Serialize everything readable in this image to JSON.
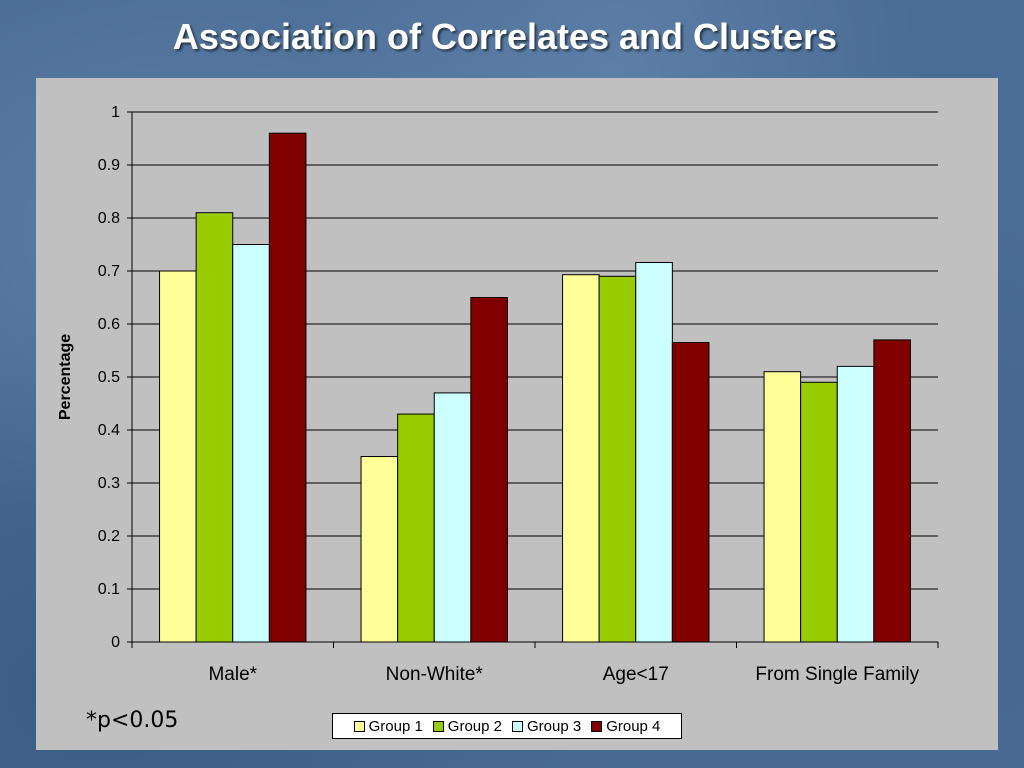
{
  "slide": {
    "title": "Association of Correlates and Clusters",
    "footnote": "*p<0.05"
  },
  "colors": {
    "background": "#4a6d95",
    "plot_area": "#c0c0c0",
    "series": [
      "#ffff99",
      "#99cc00",
      "#ccffff",
      "#800000"
    ]
  },
  "chart_data": {
    "type": "bar",
    "title": "",
    "xlabel": "",
    "ylabel": "Percentage",
    "ylim": [
      0,
      1
    ],
    "yticks": [
      "0",
      "0.1",
      "0.2",
      "0.3",
      "0.4",
      "0.5",
      "0.6",
      "0.7",
      "0.8",
      "0.9",
      "1"
    ],
    "categories": [
      "Male*",
      "Non-White*",
      "Age<17",
      "From Single Family"
    ],
    "series": [
      {
        "name": "Group 1",
        "values": [
          0.7,
          0.35,
          0.693,
          0.51
        ]
      },
      {
        "name": "Group 2",
        "values": [
          0.81,
          0.43,
          0.69,
          0.49
        ]
      },
      {
        "name": "Group 3",
        "values": [
          0.75,
          0.47,
          0.716,
          0.52
        ]
      },
      {
        "name": "Group 4",
        "values": [
          0.96,
          0.65,
          0.565,
          0.57
        ]
      }
    ],
    "grid": true,
    "legend": "bottom"
  }
}
